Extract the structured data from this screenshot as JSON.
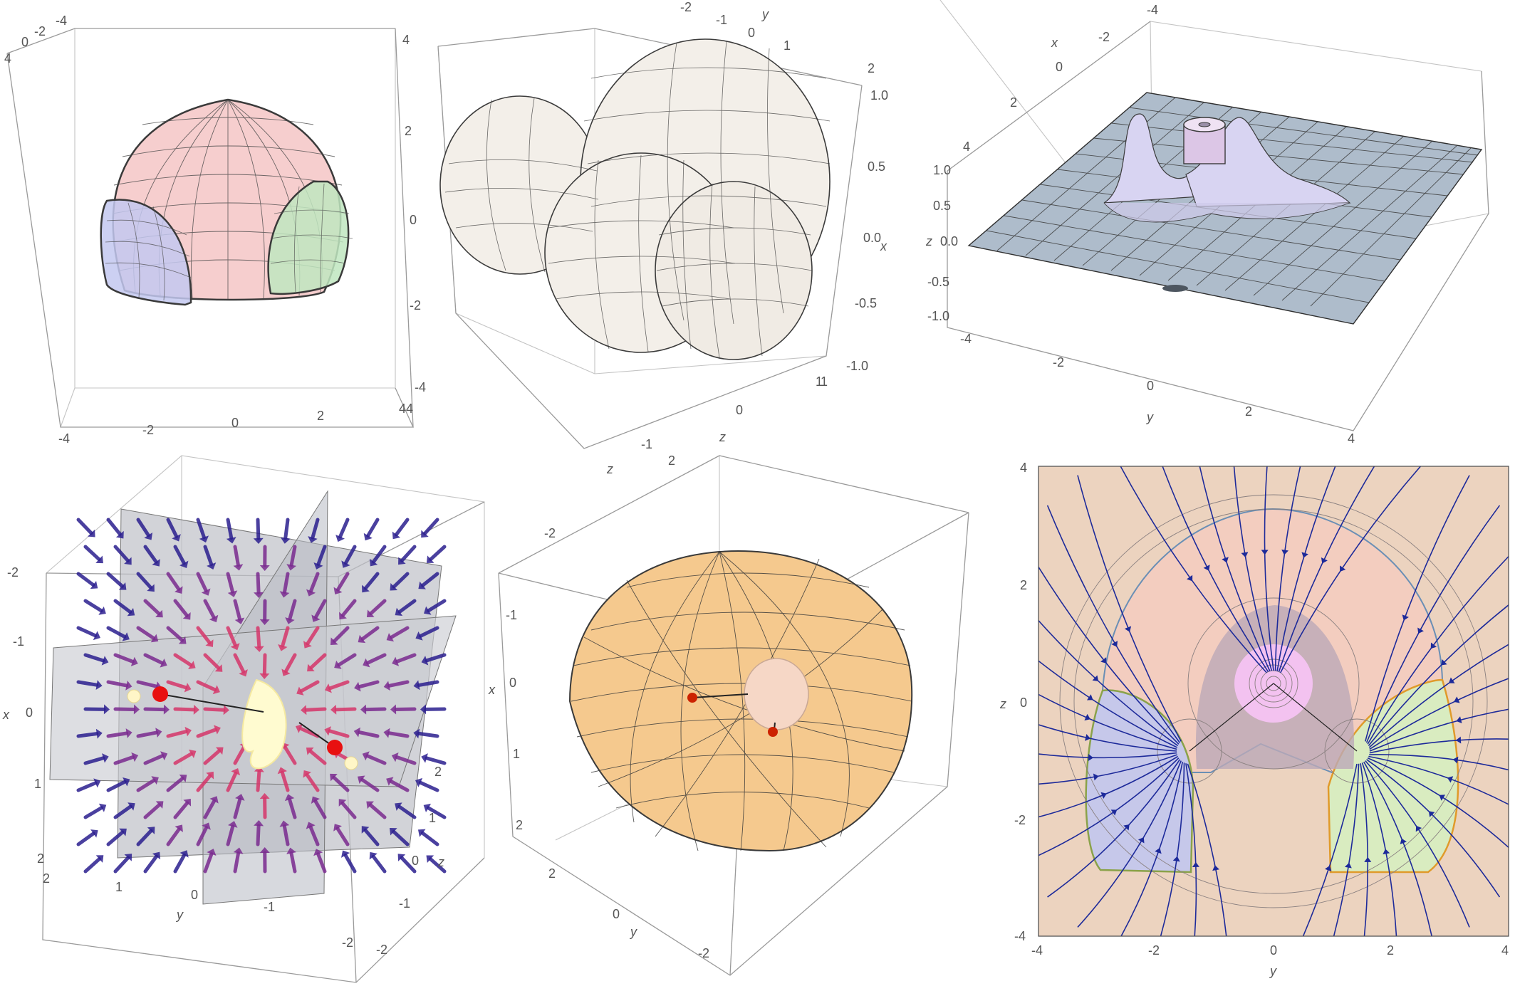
{
  "figures": [
    {
      "id": "A",
      "ticks": {
        "top_left": [
          "4",
          "0",
          "-2",
          "-4"
        ],
        "right": [
          "4",
          "2",
          "0",
          "-2",
          "-4"
        ],
        "bottom_right": [
          "4"
        ],
        "bottom": [
          "-4",
          "-2",
          "0",
          "2",
          "4"
        ]
      },
      "colors": {
        "top_lobe": "#f4c6c6",
        "left_lobe": "#c3c8f0",
        "right_lobe": "#bfe6bf",
        "wire": "#3a3a3a"
      }
    },
    {
      "id": "B",
      "ticks": {
        "top": [
          "-2",
          "-1",
          "0",
          "1",
          "2"
        ],
        "top_label": "y",
        "right": [
          "1.0",
          "0.5",
          "0.0",
          "-0.5",
          "-1.0"
        ],
        "right_label": "x",
        "bottom_right": [
          "1"
        ],
        "bottom": [
          "-1",
          "0",
          "1"
        ],
        "bottom_label": "z"
      },
      "colors": {
        "surface": "#f3efe9",
        "wire": "#3b3b3b"
      }
    },
    {
      "id": "C",
      "ticks": {
        "top_left": [
          "-4",
          "-2",
          "0",
          "2",
          "4"
        ],
        "top_left_label": "x",
        "left": [
          "1.0",
          "0.5",
          "0.0",
          "-0.5",
          "-1.0"
        ],
        "left_label": "z",
        "bottom": [
          "-4",
          "-2",
          "0",
          "2",
          "4"
        ],
        "bottom_label": "y"
      },
      "colors": {
        "plane": "#aebccb",
        "peaks": "#d8d4f2",
        "wire": "#3b3b3b"
      }
    },
    {
      "id": "D",
      "ticks": {
        "left": [
          "-2",
          "-1",
          "0",
          "1",
          "2"
        ],
        "left_label": "x",
        "bottom": [
          "2",
          "1",
          "0",
          "-1",
          "-2"
        ],
        "bottom_label": "y",
        "right": [
          "2",
          "1",
          "0",
          "-1",
          "-2"
        ],
        "right_label": "z"
      },
      "colors": {
        "plane": "#bfc1c8",
        "arrow_far": "#2b1f8f",
        "arrow_mid": "#7a2a8f",
        "arrow_near": "#d6366a",
        "core": "#fffbd0",
        "atom": "#e81010"
      }
    },
    {
      "id": "E",
      "ticks": {
        "top_left": [
          "z",
          "2"
        ],
        "left": [
          "-2",
          "-1",
          "0",
          "1",
          "2"
        ],
        "left_label": "x",
        "bottom": [
          "2",
          "0",
          "-2"
        ],
        "bottom_label": "y"
      },
      "colors": {
        "surface": "#f5c98e",
        "wire": "#3a3a3a",
        "core": "#f6d7c6",
        "atom": "#cc2200"
      }
    },
    {
      "id": "F",
      "ticks": {
        "left": [
          "4",
          "2",
          "0",
          "-2",
          "-4"
        ],
        "left_label": "z",
        "bottom": [
          "-4",
          "-2",
          "0",
          "2",
          "4"
        ],
        "bottom_label": "y"
      },
      "colors": {
        "background": "#ecd3bf",
        "top_region": "#f3cdbf",
        "left_region": "#c6c8ea",
        "right_region": "#d9ecc0",
        "inner_dark": "#bba9b8",
        "core": "#f3c2f0",
        "stream": "#1d2a9a",
        "contour": "#8a8080"
      }
    }
  ]
}
